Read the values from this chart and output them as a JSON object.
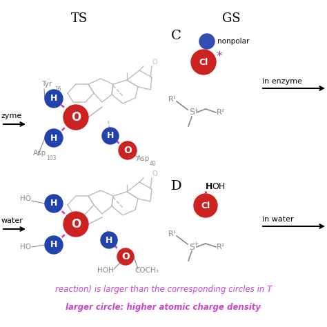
{
  "bg_color": "#ffffff",
  "title_TS": "TS",
  "title_GS": "GS",
  "red_color": "#cc2222",
  "blue_color": "#2244aa",
  "purple_color": "#aa44aa",
  "gray_color": "#aaaaaa",
  "dark_gray": "#888888",
  "label_gray": "#888888",
  "hbond_color": "#cc44cc",
  "black": "#000000",
  "text_line1": "reaction) is larger than the corresponding circles in T",
  "text_line2": "larger circle: higher atomic charge density",
  "text_color_bottom": "#cc44cc"
}
